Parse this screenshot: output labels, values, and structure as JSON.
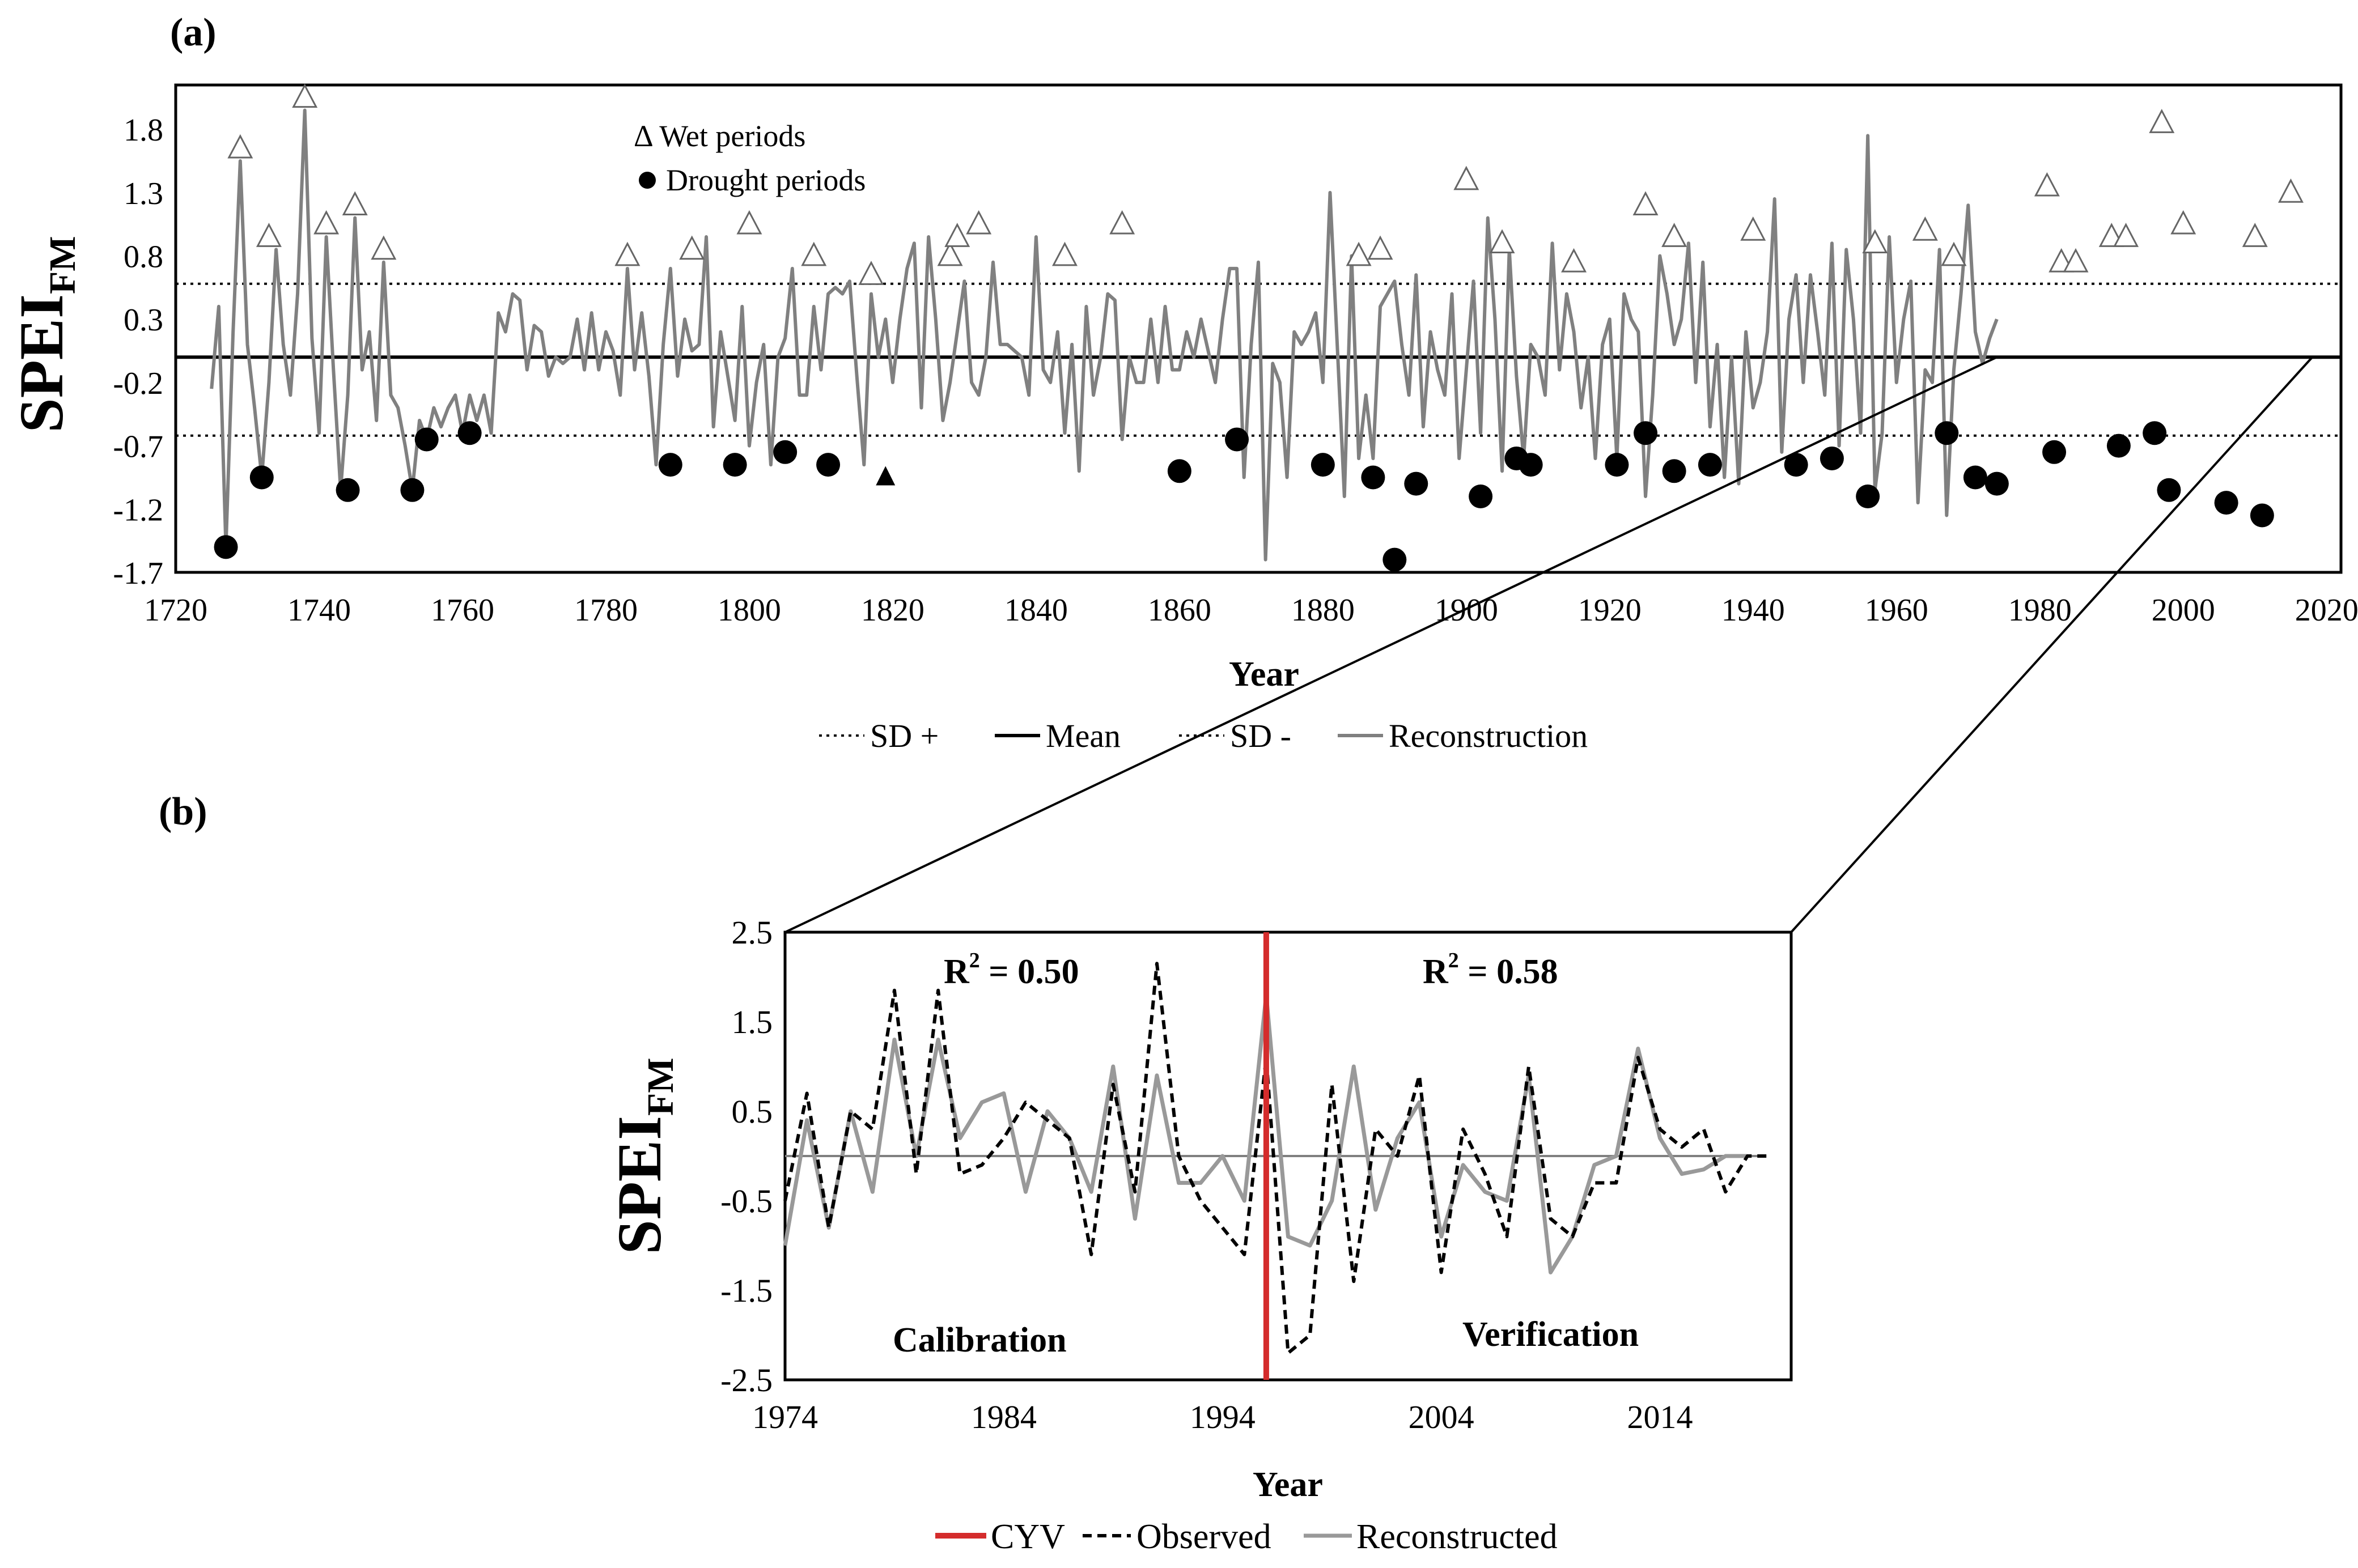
{
  "colors": {
    "reconstruction": "#808080",
    "observed": "#000000",
    "cyv": "#d42c2c",
    "axis": "#000000",
    "sd": "#000000"
  },
  "chart_data": [
    {
      "id": "a",
      "type": "line",
      "panel_label": "(a)",
      "xlabel": "Year",
      "ylabel_main": "SPEI",
      "ylabel_sub": "FM",
      "xlim": [
        1720,
        2022
      ],
      "ylim": [
        -1.7,
        2.15
      ],
      "xticks": [
        1720,
        1740,
        1760,
        1780,
        1800,
        1820,
        1840,
        1860,
        1880,
        1900,
        1920,
        1940,
        1960,
        1980,
        2000,
        2020
      ],
      "xtick_labels": [
        "1720",
        "1740",
        "1760",
        "1780",
        "1800",
        "1820",
        "1840",
        "1860",
        "1880",
        "1900",
        "1920",
        "1940",
        "1960",
        "1980",
        "2000",
        "2020"
      ],
      "yticks": [
        -1.7,
        -1.2,
        -0.7,
        -0.2,
        0.3,
        0.8,
        1.3,
        1.8
      ],
      "ytick_labels": [
        "-1.7",
        "-1.2",
        "-0.7",
        "-0.2",
        "0.3",
        "0.8",
        "1.3",
        "1.8"
      ],
      "mean": 0.0,
      "sd_plus": 0.58,
      "sd_minus": -0.62,
      "legend": {
        "sd_plus": "SD +",
        "mean": "Mean",
        "sd_minus": "SD -",
        "reconstruction": "Reconstruction"
      },
      "annotations": {
        "wet_periods": "Δ Wet periods",
        "drought_periods": "Drought periods"
      },
      "series": [
        {
          "name": "Reconstruction",
          "x_start": 1725,
          "values": [
            -0.25,
            0.4,
            -1.5,
            0.2,
            1.55,
            0.1,
            -0.4,
            -0.95,
            -0.2,
            0.85,
            0.1,
            -0.3,
            0.5,
            1.95,
            0.15,
            -0.6,
            0.95,
            -0.1,
            -1.05,
            -0.3,
            1.1,
            -0.1,
            0.2,
            -0.5,
            0.75,
            -0.3,
            -0.4,
            -0.7,
            -1.05,
            -0.5,
            -0.65,
            -0.4,
            -0.55,
            -0.4,
            -0.3,
            -0.6,
            -0.3,
            -0.5,
            -0.3,
            -0.6,
            0.35,
            0.2,
            0.5,
            0.45,
            -0.1,
            0.25,
            0.2,
            -0.15,
            0.0,
            -0.05,
            0.0,
            0.3,
            -0.1,
            0.35,
            -0.1,
            0.2,
            0.05,
            -0.3,
            0.7,
            -0.1,
            0.35,
            -0.15,
            -0.85,
            0.1,
            0.7,
            -0.15,
            0.3,
            0.05,
            0.1,
            0.95,
            -0.55,
            0.2,
            -0.15,
            -0.5,
            0.4,
            -0.7,
            -0.2,
            0.1,
            -0.85,
            0.0,
            0.15,
            0.7,
            -0.3,
            -0.3,
            0.4,
            -0.1,
            0.5,
            0.55,
            0.5,
            0.6,
            -0.15,
            -0.85,
            0.5,
            0.0,
            0.3,
            -0.2,
            0.3,
            0.7,
            0.9,
            -0.4,
            0.95,
            0.3,
            -0.5,
            -0.2,
            0.2,
            0.6,
            -0.2,
            -0.3,
            0.0,
            0.75,
            0.1,
            0.1,
            0.05,
            0.0,
            -0.3,
            0.95,
            -0.1,
            -0.2,
            0.2,
            -0.6,
            0.1,
            -0.9,
            0.4,
            -0.3,
            0.0,
            0.5,
            0.45,
            -0.65,
            0.0,
            -0.2,
            -0.2,
            0.3,
            -0.2,
            0.4,
            -0.1,
            -0.1,
            0.2,
            0.0,
            0.3,
            0.05,
            -0.2,
            0.3,
            0.7,
            0.7,
            -0.95,
            0.1,
            0.75,
            -1.6,
            -0.05,
            -0.2,
            -0.95,
            0.2,
            0.1,
            0.2,
            0.35,
            -0.2,
            1.3,
            0.1,
            -1.1,
            0.8,
            -0.8,
            -0.3,
            -0.8,
            0.4,
            0.5,
            0.6,
            0.1,
            -0.3,
            0.65,
            -0.55,
            0.2,
            -0.1,
            -0.3,
            0.5,
            -0.8,
            -0.1,
            0.6,
            -0.6,
            1.1,
            0.3,
            -0.9,
            0.85,
            -0.15,
            -0.8,
            0.1,
            0.0,
            -0.3,
            0.9,
            -0.1,
            0.5,
            0.2,
            -0.4,
            0.0,
            -0.8,
            0.1,
            0.3,
            -0.8,
            0.5,
            0.3,
            0.2,
            -1.1,
            -0.3,
            0.8,
            0.5,
            0.1,
            0.3,
            0.9,
            -0.2,
            0.75,
            -0.55,
            0.1,
            -0.95,
            0.0,
            -1.0,
            0.2,
            -0.4,
            -0.2,
            0.2,
            1.25,
            -0.75,
            0.3,
            0.65,
            -0.2,
            0.65,
            0.2,
            -0.3,
            0.9,
            -0.7,
            0.85,
            0.3,
            -0.6,
            1.75,
            -1.05,
            -0.6,
            0.95,
            -0.2,
            0.3,
            0.6,
            -1.15,
            -0.1,
            -0.2,
            0.85,
            -1.25,
            -0.1,
            0.5,
            1.2,
            0.2,
            -0.05,
            0.15,
            0.3
          ],
          "wet_markers": [
            {
              "year": 1729,
              "value": 1.55
            },
            {
              "year": 1733,
              "value": 0.85
            },
            {
              "year": 1738,
              "value": 1.95
            },
            {
              "year": 1741,
              "value": 0.95
            },
            {
              "year": 1745,
              "value": 1.1
            },
            {
              "year": 1749,
              "value": 0.75
            },
            {
              "year": 1783,
              "value": 0.7
            },
            {
              "year": 1792,
              "value": 0.75
            },
            {
              "year": 1800,
              "value": 0.95
            },
            {
              "year": 1809,
              "value": 0.7
            },
            {
              "year": 1817,
              "value": 0.55
            },
            {
              "year": 1828,
              "value": 0.7
            },
            {
              "year": 1829,
              "value": 0.85
            },
            {
              "year": 1832,
              "value": 0.95
            },
            {
              "year": 1844,
              "value": 0.7
            },
            {
              "year": 1852,
              "value": 0.95
            },
            {
              "year": 1885,
              "value": 0.7
            },
            {
              "year": 1888,
              "value": 0.75
            },
            {
              "year": 1900,
              "value": 1.3
            },
            {
              "year": 1905,
              "value": 0.8
            },
            {
              "year": 1915,
              "value": 0.65
            },
            {
              "year": 1925,
              "value": 1.1
            },
            {
              "year": 1929,
              "value": 0.85
            },
            {
              "year": 1940,
              "value": 0.9
            },
            {
              "year": 1957,
              "value": 0.8
            },
            {
              "year": 1964,
              "value": 0.9
            },
            {
              "year": 1968,
              "value": 0.7
            },
            {
              "year": 1981,
              "value": 1.25
            },
            {
              "year": 1983,
              "value": 0.65
            },
            {
              "year": 1985,
              "value": 0.65
            },
            {
              "year": 1990,
              "value": 0.85
            },
            {
              "year": 1992,
              "value": 0.85
            },
            {
              "year": 1997,
              "value": 1.75
            },
            {
              "year": 2000,
              "value": 0.95
            },
            {
              "year": 2010,
              "value": 0.85
            },
            {
              "year": 2015,
              "value": 1.2
            }
          ],
          "drought_markers": [
            {
              "year": 1727,
              "value": -1.5
            },
            {
              "year": 1732,
              "value": -0.95
            },
            {
              "year": 1744,
              "value": -1.05
            },
            {
              "year": 1753,
              "value": -1.05
            },
            {
              "year": 1755,
              "value": -0.65
            },
            {
              "year": 1761,
              "value": -0.6
            },
            {
              "year": 1789,
              "value": -0.85
            },
            {
              "year": 1798,
              "value": -0.85
            },
            {
              "year": 1805,
              "value": -0.75
            },
            {
              "year": 1811,
              "value": -0.85
            },
            {
              "year": 1860,
              "value": -0.9
            },
            {
              "year": 1868,
              "value": -0.65
            },
            {
              "year": 1880,
              "value": -0.85
            },
            {
              "year": 1887,
              "value": -0.95
            },
            {
              "year": 1890,
              "value": -1.6
            },
            {
              "year": 1893,
              "value": -1.0
            },
            {
              "year": 1902,
              "value": -1.1
            },
            {
              "year": 1907,
              "value": -0.8
            },
            {
              "year": 1909,
              "value": -0.85
            },
            {
              "year": 1921,
              "value": -0.85
            },
            {
              "year": 1925,
              "value": -0.6
            },
            {
              "year": 1929,
              "value": -0.9
            },
            {
              "year": 1934,
              "value": -0.85
            },
            {
              "year": 1946,
              "value": -0.85
            },
            {
              "year": 1951,
              "value": -0.8
            },
            {
              "year": 1956,
              "value": -1.1
            },
            {
              "year": 1967,
              "value": -0.6
            },
            {
              "year": 1971,
              "value": -0.95
            },
            {
              "year": 1974,
              "value": -1.0
            },
            {
              "year": 1982,
              "value": -0.75
            },
            {
              "year": 1991,
              "value": -0.7
            },
            {
              "year": 1996,
              "value": -0.6
            },
            {
              "year": 1998,
              "value": -1.05
            },
            {
              "year": 2006,
              "value": -1.15
            },
            {
              "year": 2011,
              "value": -1.25
            }
          ],
          "triangle_drought_markers": [
            {
              "year": 1819,
              "value": -0.95
            }
          ]
        }
      ]
    },
    {
      "id": "b",
      "type": "line",
      "panel_label": "(b)",
      "xlabel": "Year",
      "ylabel_main": "SPEI",
      "ylabel_sub": "FM",
      "xlim": [
        1974,
        2020
      ],
      "ylim": [
        -2.5,
        2.5
      ],
      "xticks": [
        1974,
        1984,
        1994,
        2004,
        2014
      ],
      "xtick_labels": [
        "1974",
        "1984",
        "1994",
        "2004",
        "2014"
      ],
      "yticks": [
        -2.5,
        -1.5,
        -0.5,
        0.5,
        1.5,
        2.5
      ],
      "ytick_labels": [
        "-2.5",
        "-1.5",
        "-0.5",
        "0.5",
        "1.5",
        "2.5"
      ],
      "cyv_year": 1996,
      "annotations": {
        "r2_calibration": "R² = 0.50",
        "r2_verification": "R² = 0.58",
        "calibration": "Calibration",
        "verification": "Verification"
      },
      "legend": {
        "cyv": "CYV",
        "observed": "Observed",
        "reconstructed": "Reconstructed"
      },
      "series": [
        {
          "name": "Observed",
          "x": [
            1974,
            1975,
            1976,
            1977,
            1978,
            1979,
            1980,
            1981,
            1982,
            1983,
            1984,
            1985,
            1986,
            1987,
            1988,
            1989,
            1990,
            1991,
            1992,
            1993,
            1994,
            1995,
            1996,
            1997,
            1998,
            1999,
            2000,
            2001,
            2002,
            2003,
            2004,
            2005,
            2006,
            2007,
            2008,
            2009,
            2010,
            2011,
            2012,
            2013,
            2014,
            2015,
            2016,
            2017,
            2018,
            2019
          ],
          "values": [
            -0.5,
            0.7,
            -0.8,
            0.5,
            0.3,
            1.85,
            -0.2,
            1.85,
            -0.2,
            -0.1,
            0.2,
            0.6,
            0.4,
            0.2,
            -1.1,
            0.8,
            -0.4,
            2.15,
            0.0,
            -0.5,
            -0.8,
            -1.1,
            1.1,
            -2.2,
            -2.0,
            0.8,
            -1.4,
            0.3,
            0.0,
            0.9,
            -1.3,
            0.3,
            -0.2,
            -0.9,
            1.0,
            -0.7,
            -0.9,
            -0.3,
            -0.3,
            1.1,
            0.3,
            0.1,
            0.3,
            -0.4,
            0.0,
            0.0
          ]
        },
        {
          "name": "Reconstructed",
          "x": [
            1974,
            1975,
            1976,
            1977,
            1978,
            1979,
            1980,
            1981,
            1982,
            1983,
            1984,
            1985,
            1986,
            1987,
            1988,
            1989,
            1990,
            1991,
            1992,
            1993,
            1994,
            1995,
            1996,
            1997,
            1998,
            1999,
            2000,
            2001,
            2002,
            2003,
            2004,
            2005,
            2006,
            2007,
            2008,
            2009,
            2010,
            2011,
            2012,
            2013,
            2014,
            2015,
            2016,
            2017,
            2018
          ],
          "values": [
            -1.0,
            0.4,
            -0.8,
            0.5,
            -0.4,
            1.3,
            0.0,
            1.3,
            0.2,
            0.6,
            0.7,
            -0.4,
            0.5,
            0.2,
            -0.4,
            1.0,
            -0.7,
            0.9,
            -0.3,
            -0.3,
            0.0,
            -0.5,
            1.8,
            -0.9,
            -1.0,
            -0.5,
            1.0,
            -0.6,
            0.2,
            0.6,
            -0.9,
            -0.1,
            -0.4,
            -0.5,
            0.9,
            -1.3,
            -0.9,
            -0.1,
            0.0,
            1.2,
            0.2,
            -0.2,
            -0.15,
            0.0,
            0.0
          ]
        }
      ]
    }
  ]
}
